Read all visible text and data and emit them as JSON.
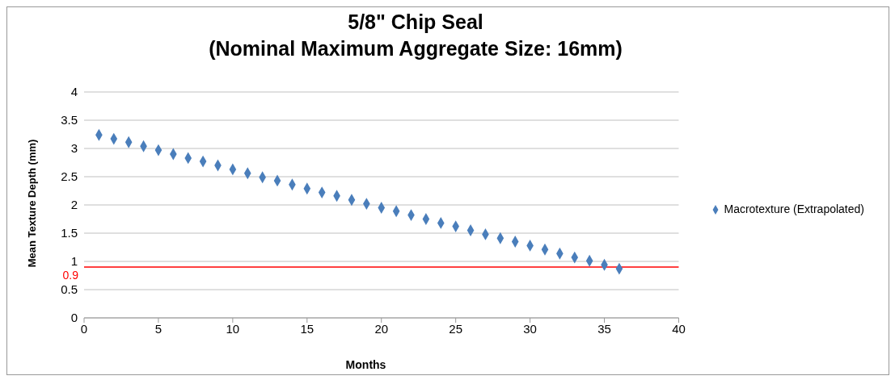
{
  "chart_data": {
    "type": "scatter",
    "title": "5/8\" Chip Seal",
    "subtitle": "(Nominal Maximum Aggregate Size: 16mm)",
    "xlabel": "Months",
    "ylabel": "Mean Texture Depth (mm)",
    "x": [
      1,
      2,
      3,
      4,
      5,
      6,
      7,
      8,
      9,
      10,
      11,
      12,
      13,
      14,
      15,
      16,
      17,
      18,
      19,
      20,
      21,
      22,
      23,
      24,
      25,
      26,
      27,
      28,
      29,
      30,
      31,
      32,
      33,
      34,
      35,
      36
    ],
    "series": [
      {
        "name": "Macrotexture (Extrapolated)",
        "color": "#4a7ebb",
        "values": [
          3.24,
          3.17,
          3.11,
          3.04,
          2.97,
          2.9,
          2.83,
          2.77,
          2.7,
          2.63,
          2.56,
          2.49,
          2.43,
          2.36,
          2.29,
          2.22,
          2.16,
          2.09,
          2.02,
          1.95,
          1.89,
          1.82,
          1.75,
          1.68,
          1.62,
          1.55,
          1.48,
          1.41,
          1.35,
          1.28,
          1.21,
          1.14,
          1.07,
          1.01,
          0.94,
          0.87
        ]
      }
    ],
    "xlim": [
      0,
      40
    ],
    "xticks": [
      0,
      5,
      10,
      15,
      20,
      25,
      30,
      35,
      40
    ],
    "ylim": [
      0,
      4
    ],
    "yticks": [
      0,
      0.5,
      1,
      1.5,
      2,
      2.5,
      3,
      3.5,
      4
    ],
    "ref_lines": [
      {
        "axis": "y",
        "value": 0.9,
        "label": "0.9",
        "color": "#ff0000"
      }
    ],
    "grid": "y",
    "legend": "right",
    "marker": "diamond"
  }
}
